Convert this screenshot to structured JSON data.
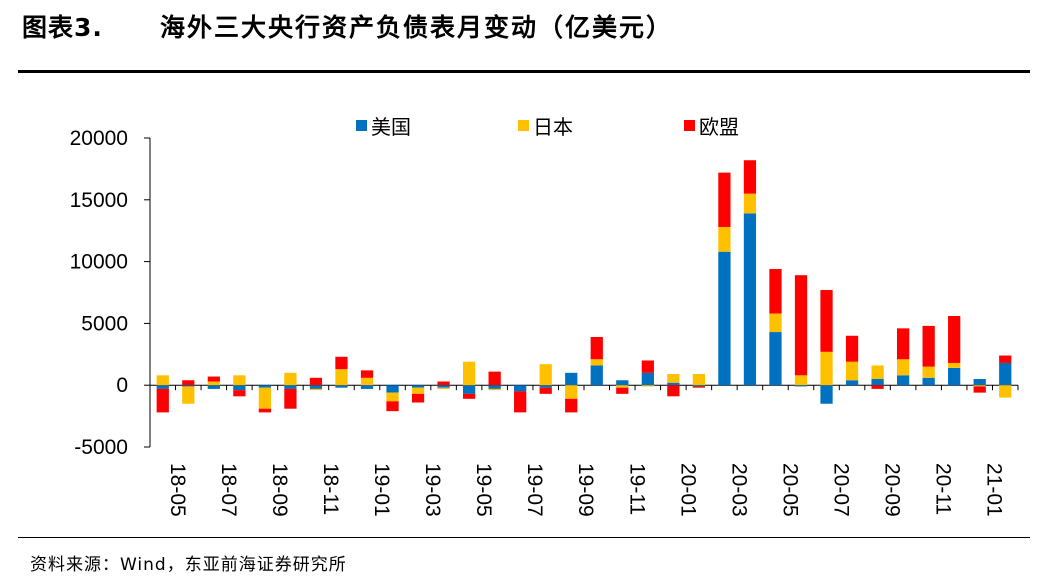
{
  "header": {
    "label": "图表3.",
    "title": "海外三大央行资产负债表月变动（亿美元）"
  },
  "footer": {
    "source": "资料来源：Wind，东亚前海证券研究所"
  },
  "colors": {
    "us": "#0070C0",
    "japan": "#FFC000",
    "eu": "#FF0000"
  },
  "chart_data": {
    "type": "bar",
    "stacked": true,
    "title": "",
    "xlabel": "",
    "ylabel": "",
    "ylim": [
      -5000,
      20000
    ],
    "yticks": [
      -5000,
      0,
      5000,
      10000,
      15000,
      20000
    ],
    "ytick_labels": [
      "-5000",
      "0",
      "5000",
      "10000",
      "15000",
      "20000"
    ],
    "legend_position": "top",
    "grid": false,
    "categories": [
      "18-05",
      "18-06",
      "18-07",
      "18-08",
      "18-09",
      "18-10",
      "18-11",
      "18-12",
      "19-01",
      "19-02",
      "19-03",
      "19-04",
      "19-05",
      "19-06",
      "19-07",
      "19-08",
      "19-09",
      "19-10",
      "19-11",
      "19-12",
      "20-01",
      "20-02",
      "20-03",
      "20-04",
      "20-05",
      "20-06",
      "20-07",
      "20-08",
      "20-09",
      "20-10",
      "20-11",
      "20-12",
      "21-01",
      "21-02"
    ],
    "xtick_labels": [
      "18-05",
      "",
      "18-07",
      "",
      "18-09",
      "",
      "18-11",
      "",
      "19-01",
      "",
      "19-03",
      "",
      "19-05",
      "",
      "19-07",
      "",
      "19-09",
      "",
      "19-11",
      "",
      "20-01",
      "",
      "20-03",
      "",
      "20-05",
      "",
      "20-07",
      "",
      "20-09",
      "",
      "20-11",
      "",
      "21-01",
      ""
    ],
    "series": [
      {
        "name": "美国",
        "color": "#0070C0",
        "values": [
          -300,
          -100,
          -300,
          -400,
          -200,
          -300,
          -300,
          -200,
          -300,
          -600,
          -200,
          -200,
          -700,
          -300,
          -500,
          -200,
          1000,
          1600,
          400,
          1000,
          200,
          -100,
          10800,
          13900,
          4300,
          -100,
          -1500,
          400,
          500,
          800,
          600,
          1400,
          500,
          1800
        ]
      },
      {
        "name": "日本",
        "color": "#FFC000",
        "values": [
          800,
          -1400,
          300,
          800,
          -1700,
          1000,
          -100,
          1300,
          600,
          -700,
          -500,
          -100,
          1900,
          -100,
          0,
          1700,
          -1100,
          500,
          -200,
          -100,
          700,
          900,
          2000,
          1600,
          1500,
          800,
          2700,
          1500,
          1100,
          1300,
          900,
          400,
          -100,
          -1000
        ]
      },
      {
        "name": "欧盟",
        "color": "#FF0000",
        "values": [
          -1900,
          400,
          400,
          -500,
          -300,
          -1600,
          600,
          1000,
          600,
          -800,
          -700,
          300,
          -400,
          1100,
          -1700,
          -500,
          -1100,
          1800,
          -500,
          1000,
          -900,
          -100,
          4400,
          2700,
          3600,
          8100,
          5000,
          2100,
          -300,
          2500,
          3300,
          3800,
          -500,
          600
        ]
      }
    ]
  }
}
